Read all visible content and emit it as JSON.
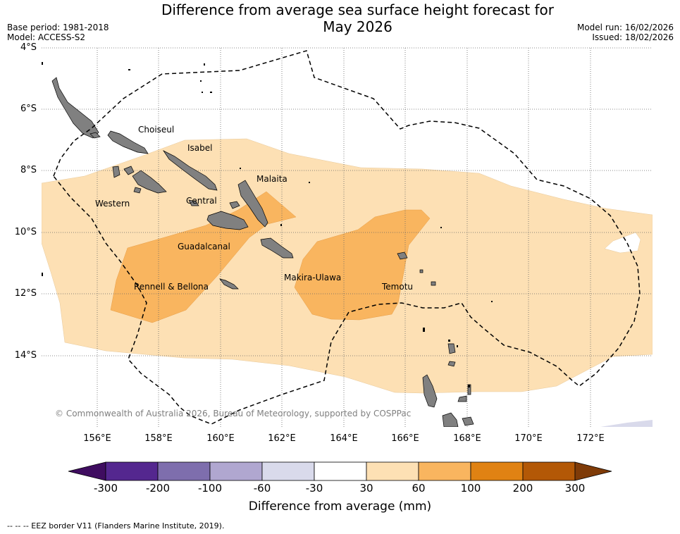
{
  "header": {
    "title_line1": "Difference from average sea surface height forecast for",
    "title_line2": "May 2026",
    "base_period": "Base period: 1981-2018",
    "model": "Model: ACCESS-S2",
    "model_run": "Model run: 16/02/2026",
    "issued": "Issued: 18/02/2026"
  },
  "axes": {
    "lat_labels": [
      "4°S",
      "6°S",
      "8°S",
      "10°S",
      "12°S",
      "14°S"
    ],
    "lon_labels": [
      "156°E",
      "158°E",
      "160°E",
      "162°E",
      "164°E",
      "166°E",
      "168°E",
      "170°E",
      "172°E"
    ]
  },
  "places": {
    "choiseul": "Choiseul",
    "isabel": "Isabel",
    "malaita": "Malaita",
    "western": "Western",
    "central": "Central",
    "guadalcanal": "Guadalcanal",
    "rennell": "Rennell & Bellona",
    "makira": "Makira-Ulawa",
    "temotu": "Temotu"
  },
  "copyright": "© Commonwealth of Australia 2026, Bureau of Meteorology, supported by COSPPac",
  "colorbar": {
    "title": "Difference from average (mm)",
    "labels": [
      "-300",
      "-200",
      "-100",
      "-60",
      "-30",
      "30",
      "60",
      "100",
      "200",
      "300"
    ],
    "colors": [
      "#3f0d60",
      "#54278f",
      "#7e6ead",
      "#b0a7d0",
      "#d9daeb",
      "#ffffff",
      "#fde0b4",
      "#f9b55f",
      "#e08213",
      "#b35806",
      "#7f3b08"
    ]
  },
  "legend_note": "--  --  -- EEZ border V11 (Flanders Marine Institute, 2019)."
}
